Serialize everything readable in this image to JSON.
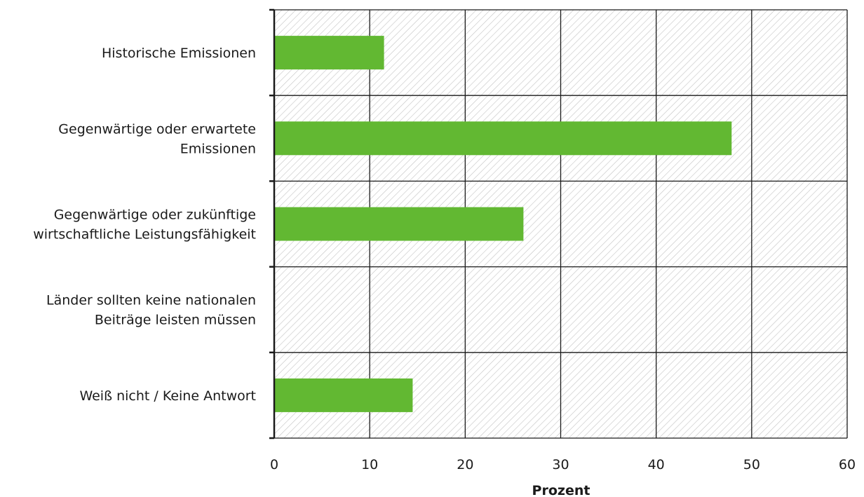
{
  "chart_data": {
    "type": "bar",
    "orientation": "horizontal",
    "categories": [
      "Historische Emissionen",
      "Gegenwärtige oder erwartete Emissionen",
      "Gegenwärtige oder zukünftige wirtschaftliche Leistungsfähigkeit",
      "Länder sollten keine nationalen Beiträge leisten müssen",
      "Weiß nicht / Keine Antwort"
    ],
    "category_lines": [
      [
        "Historische Emissionen"
      ],
      [
        "Gegenwärtige oder erwartete",
        "Emissionen"
      ],
      [
        "Gegenwärtige oder zukünftige",
        "wirtschaftliche Leistungsfähigkeit"
      ],
      [
        "Länder sollten keine nationalen",
        "Beiträge leisten müssen"
      ],
      [
        "Weiß nicht / Keine Antwort"
      ]
    ],
    "values": [
      11.5,
      47.9,
      26.1,
      0,
      14.5
    ],
    "xlabel": "Prozent",
    "xlim": [
      0,
      60
    ],
    "xticks": [
      "0",
      "10",
      "20",
      "30",
      "40",
      "50",
      "60"
    ],
    "grid": true,
    "plot_background": "hatched",
    "colors": {
      "bar": "#62b832",
      "grid": "#1a1a1a",
      "hatch": "#bdbdbd"
    }
  }
}
